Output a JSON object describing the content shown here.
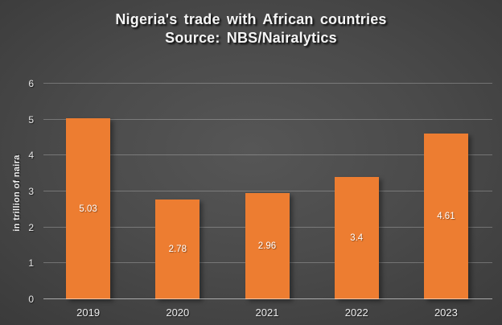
{
  "chart_data": {
    "type": "bar",
    "title": "Nigeria's trade with African countries",
    "subtitle": "Source: NBS/Nairalytics",
    "categories": [
      "2019",
      "2020",
      "2021",
      "2022",
      "2023"
    ],
    "values": [
      5.03,
      2.78,
      2.96,
      3.4,
      4.61
    ],
    "data_labels": [
      "5.03",
      "2.78",
      "2.96",
      "3.4",
      "4.61"
    ],
    "xlabel": "",
    "ylabel": "in trillion of naira",
    "ylim": [
      0,
      6
    ],
    "ytick_step": 1,
    "grid": "horizontal",
    "legend": "none",
    "data_label_position": "inside-center",
    "colors": {
      "bar": "#ED7D31",
      "bar_label": "#FFFFFF",
      "background_center": "#535353",
      "background_edge": "#252525",
      "gridline": "rgba(255,255,255,0.25)",
      "axis_line": "rgba(255,255,255,0.55)",
      "text": "#F0F0F0"
    }
  }
}
